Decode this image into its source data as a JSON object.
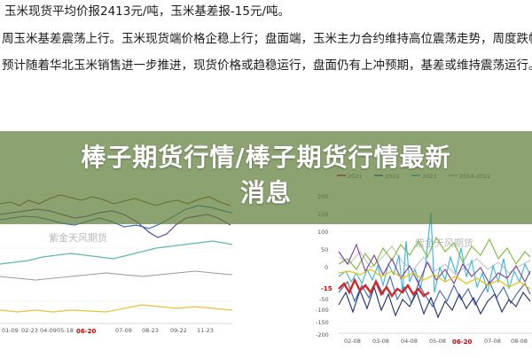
{
  "article": {
    "line1": "玉米现货平均价报2413元/吨，玉米基差报-15元/吨。",
    "line2": "周玉米基差震荡上行。玉米现货端价格企稳上行；盘面端，玉米主力合约维持高位震荡走势，周度跌幅",
    "line3": "预计随着华北玉米销售进一步推进，现货价格或趋稳运行，盘面仍有上冲预期，基差或维持震荡运行。"
  },
  "banner": {
    "title_line1": "棒子期货行情/棒子期货行情最新",
    "title_line2": "消息"
  },
  "left_chart": {
    "watermark": "紫金天风期货",
    "x_ticks": [
      "01-09",
      "02-23",
      "04-09",
      "05-18",
      "06-20",
      "07-09",
      "08-23",
      "09-22",
      "11-23"
    ],
    "x_tick_highlight": "06-20",
    "colors": {
      "brown": "#8b5a3c",
      "purple": "#6a3d9a",
      "blue": "#3a6fb5",
      "teal": "#5fb8b0",
      "yellow": "#e9c33b",
      "gray": "#9a9a9a"
    }
  },
  "right_chart": {
    "watermark": "紫金天风期货",
    "legend": [
      "2021",
      "2022",
      "2023",
      "2014-2022"
    ],
    "y_ticks": [
      "200",
      "150",
      "100",
      "50",
      "0",
      "-15",
      "-50",
      "-100",
      "-150",
      "-200"
    ],
    "x_ticks": [
      "02-08",
      "03-08",
      "04-08",
      "05-08",
      "06-20",
      "07-08",
      "08-08"
    ],
    "x_tick_highlight": "06-20",
    "colors": {
      "red": "#d12a2a",
      "blue": "#3c63b8",
      "navy": "#1d2d6a",
      "cyan": "#35b6e0",
      "green": "#7dba3c",
      "yellow": "#e8c400",
      "purple": "#7d3f98",
      "gray": "#bdbdbd"
    }
  }
}
